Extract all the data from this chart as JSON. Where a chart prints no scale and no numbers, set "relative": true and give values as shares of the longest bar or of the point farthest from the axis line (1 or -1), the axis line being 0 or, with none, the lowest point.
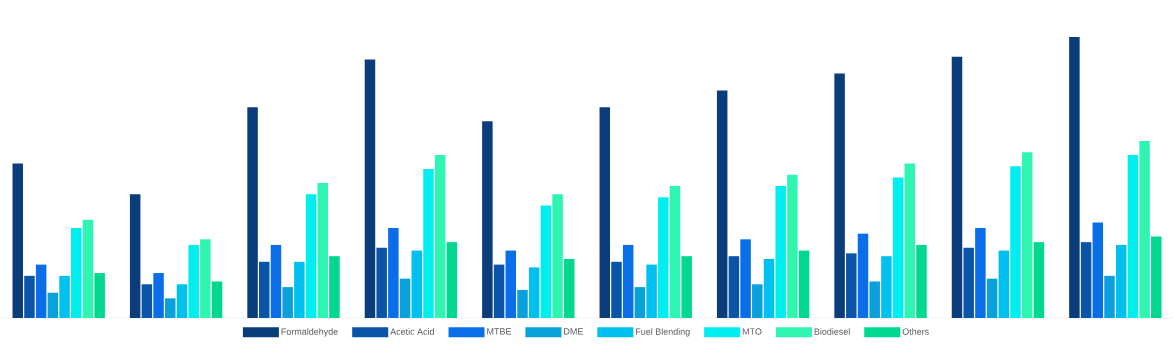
{
  "chart_data": {
    "type": "bar",
    "relative": true,
    "legend": "bottom",
    "categories": [
      null,
      null,
      null,
      null,
      null,
      null,
      null,
      null,
      null,
      null
    ],
    "series": [
      {
        "name": "Formaldehyde",
        "color": "#0a3d7a",
        "values": [
          0.55,
          0.44,
          0.75,
          0.92,
          0.7,
          0.75,
          0.81,
          0.87,
          0.93,
          1
        ]
      },
      {
        "name": "Acetic Acid",
        "color": "#0a55a8",
        "values": [
          0.15,
          0.12,
          0.2,
          0.25,
          0.19,
          0.2,
          0.22,
          0.23,
          0.25,
          0.27
        ]
      },
      {
        "name": "MTBE",
        "color": "#0a6ee8",
        "values": [
          0.19,
          0.16,
          0.26,
          0.32,
          0.24,
          0.26,
          0.28,
          0.3,
          0.32,
          0.34
        ]
      },
      {
        "name": "DME",
        "color": "#0aa0dc",
        "values": [
          0.09,
          0.07,
          0.11,
          0.14,
          0.1,
          0.11,
          0.12,
          0.13,
          0.14,
          0.15
        ]
      },
      {
        "name": "Fuel Blending",
        "color": "#00c0f0",
        "values": [
          0.15,
          0.12,
          0.2,
          0.24,
          0.18,
          0.19,
          0.21,
          0.22,
          0.24,
          0.26
        ]
      },
      {
        "name": "MTO",
        "color": "#00eef0",
        "values": [
          0.32,
          0.26,
          0.44,
          0.53,
          0.4,
          0.43,
          0.47,
          0.5,
          0.54,
          0.58
        ]
      },
      {
        "name": "Biodiesel",
        "color": "#30f5b0",
        "values": [
          0.35,
          0.28,
          0.48,
          0.58,
          0.44,
          0.47,
          0.51,
          0.55,
          0.59,
          0.63
        ]
      },
      {
        "name": "Others",
        "color": "#00d890",
        "values": [
          0.16,
          0.13,
          0.22,
          0.27,
          0.21,
          0.22,
          0.24,
          0.26,
          0.27,
          0.29
        ]
      }
    ]
  }
}
